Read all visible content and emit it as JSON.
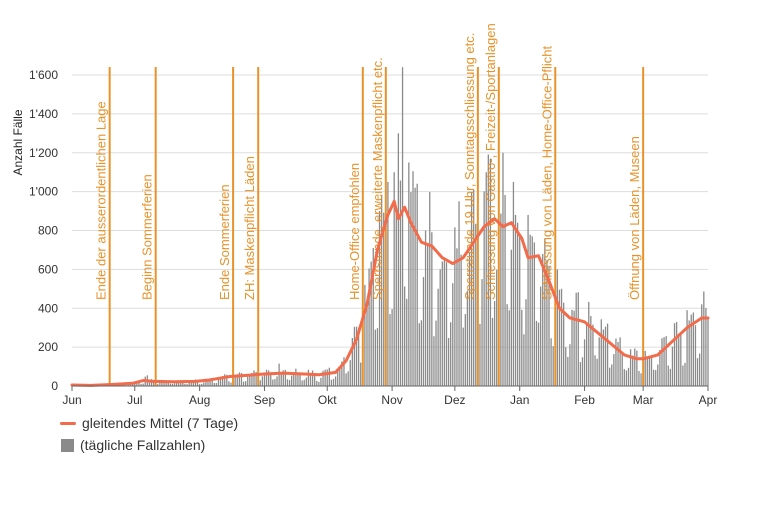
{
  "chart_data": {
    "type": "bar",
    "ylabel": "Anzahl Fälle",
    "ylim": [
      0,
      1600
    ],
    "yticks": [
      0,
      200,
      400,
      600,
      800,
      1000,
      1200,
      1400,
      1600
    ],
    "ytick_labels": [
      "0",
      "200",
      "400",
      "600",
      "800",
      "1'000",
      "1'200",
      "1'400",
      "1'600"
    ],
    "xlim": [
      "2020-06-01",
      "2021-04-01"
    ],
    "xticks": [
      {
        "date": "2020-06-01",
        "label": "Jun"
      },
      {
        "date": "2020-07-01",
        "label": "Jul"
      },
      {
        "date": "2020-08-01",
        "label": "Aug"
      },
      {
        "date": "2020-09-01",
        "label": "Sep"
      },
      {
        "date": "2020-10-01",
        "label": "Okt"
      },
      {
        "date": "2020-11-01",
        "label": "Nov"
      },
      {
        "date": "2020-12-01",
        "label": "Dez"
      },
      {
        "date": "2021-01-01",
        "label": "Jan"
      },
      {
        "date": "2021-02-01",
        "label": "Feb"
      },
      {
        "date": "2021-03-01",
        "label": "Mar"
      },
      {
        "date": "2021-04-01",
        "label": "Apr"
      }
    ],
    "events": [
      {
        "date": "2020-06-19",
        "label": "Ende der ausserordentlichen Lage"
      },
      {
        "date": "2020-07-11",
        "label": "Beginn Sommerferien"
      },
      {
        "date": "2020-08-17",
        "label": "Ende Sommerferien"
      },
      {
        "date": "2020-08-29",
        "label": "ZH: Maskenpflicht Läden"
      },
      {
        "date": "2020-10-18",
        "label": "Home-Office empfohlen"
      },
      {
        "date": "2020-10-29",
        "label": "Sperrstunde, erweiterte Maskenpflicht etc."
      },
      {
        "date": "2020-12-12",
        "label": "Sperrstunde 19 Uhr, Sonntagsschliessung etc."
      },
      {
        "date": "2020-12-22",
        "label": "Schliessung von Gastro-, Freizeit-/Sportanlagen"
      },
      {
        "date": "2021-01-18",
        "label": "Schliessung von Läden, Home-Office-Pflicht"
      },
      {
        "date": "2021-03-01",
        "label": "Öffnung von Läden, Museen"
      }
    ],
    "series": [
      {
        "name": "gleitendes Mittel (7 Tage)",
        "type": "line",
        "color": "#f26b4b",
        "points": [
          [
            "2020-06-01",
            5
          ],
          [
            "2020-06-10",
            3
          ],
          [
            "2020-06-20",
            8
          ],
          [
            "2020-06-30",
            14
          ],
          [
            "2020-07-05",
            28
          ],
          [
            "2020-07-10",
            24
          ],
          [
            "2020-07-20",
            22
          ],
          [
            "2020-07-30",
            24
          ],
          [
            "2020-08-05",
            30
          ],
          [
            "2020-08-15",
            48
          ],
          [
            "2020-08-25",
            56
          ],
          [
            "2020-09-01",
            62
          ],
          [
            "2020-09-10",
            66
          ],
          [
            "2020-09-20",
            62
          ],
          [
            "2020-09-27",
            58
          ],
          [
            "2020-10-05",
            70
          ],
          [
            "2020-10-10",
            130
          ],
          [
            "2020-10-15",
            240
          ],
          [
            "2020-10-20",
            420
          ],
          [
            "2020-10-25",
            700
          ],
          [
            "2020-10-30",
            880
          ],
          [
            "2020-11-02",
            950
          ],
          [
            "2020-11-04",
            860
          ],
          [
            "2020-11-07",
            920
          ],
          [
            "2020-11-10",
            840
          ],
          [
            "2020-11-15",
            740
          ],
          [
            "2020-11-20",
            720
          ],
          [
            "2020-11-25",
            660
          ],
          [
            "2020-11-30",
            630
          ],
          [
            "2020-12-05",
            660
          ],
          [
            "2020-12-10",
            740
          ],
          [
            "2020-12-15",
            820
          ],
          [
            "2020-12-20",
            860
          ],
          [
            "2020-12-24",
            820
          ],
          [
            "2020-12-28",
            840
          ],
          [
            "2021-01-02",
            760
          ],
          [
            "2021-01-05",
            660
          ],
          [
            "2021-01-10",
            670
          ],
          [
            "2021-01-15",
            540
          ],
          [
            "2021-01-20",
            400
          ],
          [
            "2021-01-25",
            350
          ],
          [
            "2021-02-01",
            330
          ],
          [
            "2021-02-10",
            250
          ],
          [
            "2021-02-20",
            160
          ],
          [
            "2021-02-26",
            140
          ],
          [
            "2021-03-01",
            140
          ],
          [
            "2021-03-08",
            160
          ],
          [
            "2021-03-15",
            230
          ],
          [
            "2021-03-22",
            300
          ],
          [
            "2021-03-29",
            350
          ],
          [
            "2021-04-01",
            350
          ]
        ]
      },
      {
        "name": "(tägliche Fallzahlen)",
        "type": "bar",
        "color": "#8a8a8a",
        "points": [
          [
            "2020-07-06",
            48
          ],
          [
            "2020-07-07",
            55
          ],
          [
            "2020-08-20",
            70
          ],
          [
            "2020-09-08",
            115
          ],
          [
            "2020-10-16",
            300
          ],
          [
            "2020-10-19",
            520
          ],
          [
            "2020-10-22",
            640
          ],
          [
            "2020-10-23",
            710
          ],
          [
            "2020-10-26",
            900
          ],
          [
            "2020-10-30",
            1050
          ],
          [
            "2020-11-02",
            1100
          ],
          [
            "2020-11-04",
            1300
          ],
          [
            "2020-11-06",
            1640
          ],
          [
            "2020-11-09",
            1150
          ],
          [
            "2020-11-12",
            1020
          ],
          [
            "2020-11-17",
            800
          ],
          [
            "2020-11-24",
            600
          ],
          [
            "2020-12-03",
            950
          ],
          [
            "2020-12-10",
            1010
          ],
          [
            "2020-12-16",
            1100
          ],
          [
            "2020-12-18",
            1170
          ],
          [
            "2020-12-24",
            1200
          ],
          [
            "2020-12-30",
            880
          ],
          [
            "2021-01-05",
            880
          ],
          [
            "2021-01-13",
            760
          ],
          [
            "2021-01-21",
            500
          ],
          [
            "2021-02-04",
            360
          ],
          [
            "2021-02-18",
            250
          ],
          [
            "2021-03-02",
            180
          ],
          [
            "2021-03-22",
            390
          ],
          [
            "2021-03-29",
            420
          ],
          [
            "2021-03-31",
            400
          ]
        ]
      }
    ]
  },
  "legend": {
    "items": [
      {
        "label": "gleitendes Mittel (7 Tage)",
        "color": "#f26b4b"
      },
      {
        "label": "(tägliche Fallzahlen)",
        "color": "#8a8a8a"
      }
    ]
  },
  "colors": {
    "event_line": "#e8922a",
    "grid": "#dddddd",
    "axis": "#666666"
  }
}
